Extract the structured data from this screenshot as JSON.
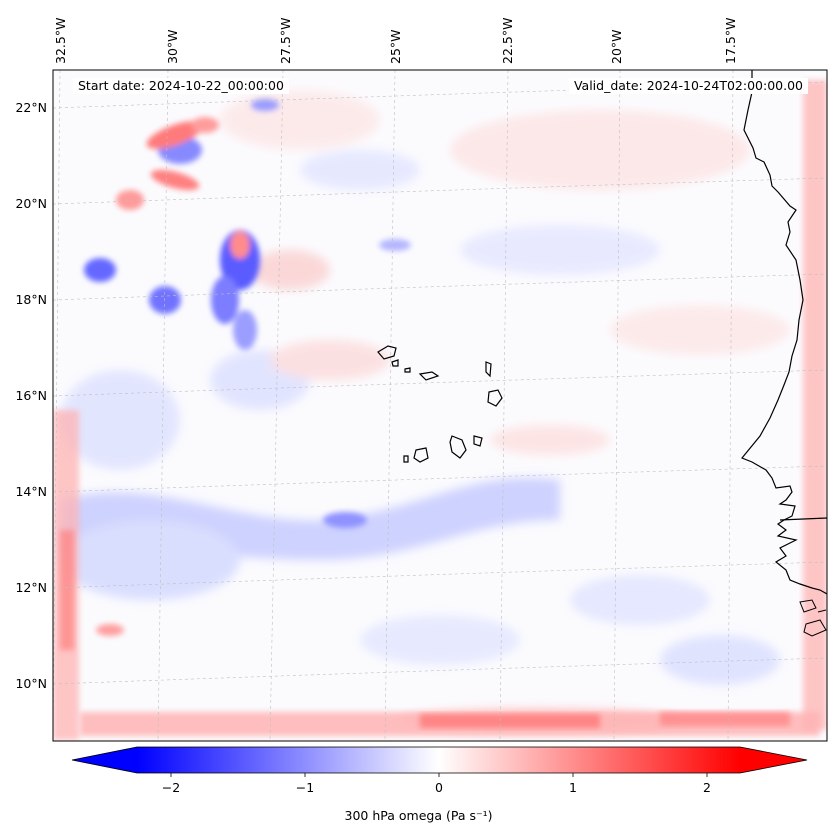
{
  "map": {
    "start_date": "Start date: 2024-10-22_00:00:00",
    "valid_date": "Valid_date: 2024-10-24T02:00:00.00",
    "lon_labels": [
      "32.5°W",
      "30°W",
      "27.5°W",
      "25°W",
      "22.5°W",
      "20°W",
      "17.5°W"
    ],
    "lon_values": [
      -32.5,
      -30,
      -27.5,
      -25,
      -22.5,
      -20,
      -17.5
    ],
    "lat_labels": [
      "22°N",
      "20°N",
      "18°N",
      "16°N",
      "14°N",
      "12°N",
      "10°N"
    ],
    "lat_values": [
      22,
      20,
      18,
      16,
      14,
      12,
      10
    ],
    "lon_range": [
      -32.7,
      -15.5
    ],
    "lat_range": [
      8.9,
      22.8
    ]
  },
  "colorbar": {
    "label": "300 hPa omega (Pa s⁻¹)",
    "ticks": [
      "−2",
      "−1",
      "0",
      "1",
      "2"
    ],
    "tick_values": [
      -2,
      -1,
      0,
      1,
      2
    ],
    "range": [
      -2.5,
      2.5
    ],
    "colormap": "bwr",
    "low_color": "#0000ff",
    "mid_color": "#ffffff",
    "high_color": "#ff0000"
  }
}
